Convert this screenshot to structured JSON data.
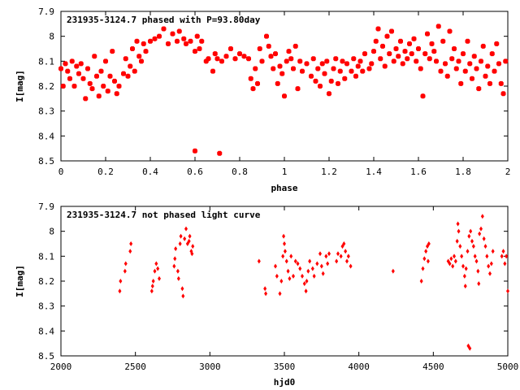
{
  "chart_data": [
    {
      "type": "scatter",
      "title": "231935-3124.7 phased with P=93.80day",
      "xlabel": "phase",
      "ylabel": "I[mag]",
      "xlim": [
        0,
        2
      ],
      "ylim": [
        8.5,
        7.9
      ],
      "y_inverted": true,
      "grid": false,
      "marker_color": "#ff0000",
      "marker": "filled-square-rotated",
      "xticks": [
        {
          "v": 0,
          "label": "0"
        },
        {
          "v": 0.2,
          "label": "0.2"
        },
        {
          "v": 0.4,
          "label": "0.4"
        },
        {
          "v": 0.6,
          "label": "0.6"
        },
        {
          "v": 0.8,
          "label": "0.8"
        },
        {
          "v": 1,
          "label": "1"
        },
        {
          "v": 1.2,
          "label": "1.2"
        },
        {
          "v": 1.4,
          "label": "1.4"
        },
        {
          "v": 1.6,
          "label": "1.6"
        },
        {
          "v": 1.8,
          "label": "1.8"
        },
        {
          "v": 2,
          "label": "2"
        }
      ],
      "yticks": [
        {
          "v": 7.9,
          "label": "7.9"
        },
        {
          "v": 8.0,
          "label": "8"
        },
        {
          "v": 8.1,
          "label": "8.1"
        },
        {
          "v": 8.2,
          "label": "8.2"
        },
        {
          "v": 8.3,
          "label": "8.3"
        },
        {
          "v": 8.4,
          "label": "8.4"
        },
        {
          "v": 8.5,
          "label": "8.5"
        }
      ],
      "points": [
        [
          0.0,
          8.13
        ],
        [
          0.01,
          8.2
        ],
        [
          0.02,
          8.11
        ],
        [
          0.03,
          8.14
        ],
        [
          0.04,
          8.17
        ],
        [
          0.05,
          8.1
        ],
        [
          0.06,
          8.2
        ],
        [
          0.07,
          8.12
        ],
        [
          0.08,
          8.15
        ],
        [
          0.09,
          8.11
        ],
        [
          0.1,
          8.17
        ],
        [
          0.11,
          8.25
        ],
        [
          0.12,
          8.13
        ],
        [
          0.13,
          8.19
        ],
        [
          0.14,
          8.21
        ],
        [
          0.15,
          8.08
        ],
        [
          0.16,
          8.16
        ],
        [
          0.17,
          8.24
        ],
        [
          0.18,
          8.14
        ],
        [
          0.19,
          8.2
        ],
        [
          0.2,
          8.1
        ],
        [
          0.21,
          8.22
        ],
        [
          0.22,
          8.16
        ],
        [
          0.23,
          8.06
        ],
        [
          0.24,
          8.18
        ],
        [
          0.25,
          8.23
        ],
        [
          0.26,
          8.2
        ],
        [
          0.28,
          8.15
        ],
        [
          0.29,
          8.09
        ],
        [
          0.3,
          8.16
        ],
        [
          0.31,
          8.12
        ],
        [
          0.32,
          8.05
        ],
        [
          0.33,
          8.14
        ],
        [
          0.34,
          8.02
        ],
        [
          0.35,
          8.08
        ],
        [
          0.36,
          8.1
        ],
        [
          0.37,
          8.03
        ],
        [
          0.38,
          8.06
        ],
        [
          0.4,
          8.02
        ],
        [
          0.42,
          8.01
        ],
        [
          0.44,
          8.0
        ],
        [
          0.46,
          7.97
        ],
        [
          0.48,
          8.03
        ],
        [
          0.5,
          7.99
        ],
        [
          0.52,
          8.02
        ],
        [
          0.53,
          7.98
        ],
        [
          0.55,
          8.01
        ],
        [
          0.56,
          8.03
        ],
        [
          0.58,
          8.02
        ],
        [
          0.6,
          8.06
        ],
        [
          0.61,
          8.0
        ],
        [
          0.62,
          8.05
        ],
        [
          0.63,
          8.02
        ],
        [
          0.65,
          8.1
        ],
        [
          0.66,
          8.09
        ],
        [
          0.68,
          8.14
        ],
        [
          0.69,
          8.07
        ],
        [
          0.7,
          8.09
        ],
        [
          0.72,
          8.1
        ],
        [
          0.74,
          8.08
        ],
        [
          0.76,
          8.05
        ],
        [
          0.78,
          8.09
        ],
        [
          0.8,
          8.07
        ],
        [
          0.82,
          8.08
        ],
        [
          0.84,
          8.09
        ],
        [
          0.85,
          8.17
        ],
        [
          0.86,
          8.21
        ],
        [
          0.87,
          8.13
        ],
        [
          0.88,
          8.19
        ],
        [
          0.89,
          8.05
        ],
        [
          0.9,
          8.1
        ],
        [
          0.92,
          8.0
        ],
        [
          0.93,
          8.04
        ],
        [
          0.94,
          8.08
        ],
        [
          0.95,
          8.13
        ],
        [
          0.96,
          8.07
        ],
        [
          0.97,
          8.19
        ],
        [
          0.98,
          8.12
        ],
        [
          0.99,
          8.15
        ],
        [
          1.0,
          8.24
        ],
        [
          1.01,
          8.1
        ],
        [
          1.02,
          8.06
        ],
        [
          1.03,
          8.09
        ],
        [
          1.04,
          8.13
        ],
        [
          1.05,
          8.04
        ],
        [
          1.06,
          8.21
        ],
        [
          1.07,
          8.1
        ],
        [
          1.08,
          8.14
        ],
        [
          1.1,
          8.11
        ],
        [
          1.12,
          8.16
        ],
        [
          1.13,
          8.09
        ],
        [
          1.14,
          8.18
        ],
        [
          1.15,
          8.13
        ],
        [
          1.16,
          8.2
        ],
        [
          1.17,
          8.11
        ],
        [
          1.18,
          8.15
        ],
        [
          1.19,
          8.1
        ],
        [
          1.2,
          8.23
        ],
        [
          1.21,
          8.18
        ],
        [
          1.22,
          8.13
        ],
        [
          1.23,
          8.09
        ],
        [
          1.24,
          8.19
        ],
        [
          1.25,
          8.14
        ],
        [
          1.26,
          8.1
        ],
        [
          1.27,
          8.17
        ],
        [
          1.28,
          8.11
        ],
        [
          1.3,
          8.14
        ],
        [
          1.31,
          8.09
        ],
        [
          1.32,
          8.16
        ],
        [
          1.33,
          8.12
        ],
        [
          1.34,
          8.1
        ],
        [
          1.35,
          8.14
        ],
        [
          1.36,
          8.07
        ],
        [
          1.38,
          8.13
        ],
        [
          1.39,
          8.11
        ],
        [
          1.4,
          8.06
        ],
        [
          1.41,
          8.02
        ],
        [
          1.42,
          7.97
        ],
        [
          1.43,
          8.09
        ],
        [
          1.44,
          8.04
        ],
        [
          1.45,
          8.12
        ],
        [
          1.46,
          8.0
        ],
        [
          1.47,
          8.07
        ],
        [
          1.48,
          7.98
        ],
        [
          1.49,
          8.1
        ],
        [
          1.5,
          8.05
        ],
        [
          1.51,
          8.08
        ],
        [
          1.52,
          8.02
        ],
        [
          1.53,
          8.11
        ],
        [
          1.54,
          8.06
        ],
        [
          1.55,
          8.09
        ],
        [
          1.56,
          8.03
        ],
        [
          1.57,
          8.07
        ],
        [
          1.58,
          8.01
        ],
        [
          1.59,
          8.1
        ],
        [
          1.6,
          8.05
        ],
        [
          1.61,
          8.13
        ],
        [
          1.62,
          8.24
        ],
        [
          1.63,
          8.07
        ],
        [
          1.64,
          7.99
        ],
        [
          1.65,
          8.09
        ],
        [
          1.66,
          8.03
        ],
        [
          1.67,
          8.06
        ],
        [
          1.68,
          8.1
        ],
        [
          1.69,
          7.96
        ],
        [
          1.7,
          8.14
        ],
        [
          1.71,
          8.02
        ],
        [
          1.72,
          8.11
        ],
        [
          1.73,
          8.16
        ],
        [
          1.74,
          7.98
        ],
        [
          1.75,
          8.09
        ],
        [
          1.76,
          8.05
        ],
        [
          1.77,
          8.13
        ],
        [
          1.78,
          8.1
        ],
        [
          1.79,
          8.19
        ],
        [
          1.8,
          8.07
        ],
        [
          1.81,
          8.14
        ],
        [
          1.82,
          8.02
        ],
        [
          1.83,
          8.11
        ],
        [
          1.84,
          8.17
        ],
        [
          1.85,
          8.08
        ],
        [
          1.86,
          8.13
        ],
        [
          1.87,
          8.21
        ],
        [
          1.88,
          8.1
        ],
        [
          1.89,
          8.04
        ],
        [
          1.9,
          8.16
        ],
        [
          1.91,
          8.12
        ],
        [
          1.92,
          8.19
        ],
        [
          1.93,
          8.07
        ],
        [
          1.94,
          8.14
        ],
        [
          1.95,
          8.03
        ],
        [
          1.96,
          8.11
        ],
        [
          1.97,
          8.19
        ],
        [
          1.98,
          8.23
        ],
        [
          1.99,
          8.1
        ],
        [
          0.6,
          8.46
        ],
        [
          0.71,
          8.47
        ]
      ]
    },
    {
      "type": "scatter",
      "title": "231935-3124.7 not phased light curve",
      "xlabel": "hjd0",
      "ylabel": "I[mag]",
      "xlim": [
        2000,
        5000
      ],
      "ylim": [
        8.5,
        7.9
      ],
      "y_inverted": true,
      "grid": false,
      "marker_color": "#ff0000",
      "marker": "small-diamond",
      "xticks": [
        {
          "v": 2000,
          "label": "2000"
        },
        {
          "v": 2500,
          "label": "2500"
        },
        {
          "v": 3000,
          "label": "3000"
        },
        {
          "v": 3500,
          "label": "3500"
        },
        {
          "v": 4000,
          "label": "4000"
        },
        {
          "v": 4500,
          "label": "4500"
        },
        {
          "v": 5000,
          "label": "5000"
        }
      ],
      "yticks": [
        {
          "v": 7.9,
          "label": "7.9"
        },
        {
          "v": 8.0,
          "label": "8"
        },
        {
          "v": 8.1,
          "label": "8.1"
        },
        {
          "v": 8.2,
          "label": "8.2"
        },
        {
          "v": 8.3,
          "label": "8.3"
        },
        {
          "v": 8.4,
          "label": "8.4"
        },
        {
          "v": 8.5,
          "label": "8.5"
        }
      ],
      "points": [
        [
          2395,
          8.24
        ],
        [
          2400,
          8.2
        ],
        [
          2430,
          8.16
        ],
        [
          2435,
          8.13
        ],
        [
          2465,
          8.08
        ],
        [
          2470,
          8.05
        ],
        [
          2610,
          8.24
        ],
        [
          2615,
          8.22
        ],
        [
          2620,
          8.2
        ],
        [
          2630,
          8.16
        ],
        [
          2640,
          8.13
        ],
        [
          2650,
          8.15
        ],
        [
          2660,
          8.19
        ],
        [
          2760,
          8.14
        ],
        [
          2765,
          8.11
        ],
        [
          2770,
          8.07
        ],
        [
          2785,
          8.16
        ],
        [
          2790,
          8.19
        ],
        [
          2800,
          8.05
        ],
        [
          2805,
          8.02
        ],
        [
          2815,
          8.23
        ],
        [
          2820,
          8.26
        ],
        [
          2830,
          8.03
        ],
        [
          2840,
          7.99
        ],
        [
          2850,
          8.05
        ],
        [
          2860,
          8.04
        ],
        [
          2865,
          8.02
        ],
        [
          2875,
          8.08
        ],
        [
          2880,
          8.09
        ],
        [
          2885,
          8.06
        ],
        [
          3330,
          8.12
        ],
        [
          3370,
          8.23
        ],
        [
          3375,
          8.25
        ],
        [
          3440,
          8.14
        ],
        [
          3450,
          8.18
        ],
        [
          3470,
          8.25
        ],
        [
          3480,
          8.2
        ],
        [
          3490,
          8.1
        ],
        [
          3495,
          8.02
        ],
        [
          3500,
          8.05
        ],
        [
          3505,
          8.08
        ],
        [
          3515,
          8.12
        ],
        [
          3525,
          8.16
        ],
        [
          3535,
          8.19
        ],
        [
          3545,
          8.1
        ],
        [
          3560,
          8.18
        ],
        [
          3575,
          8.12
        ],
        [
          3590,
          8.13
        ],
        [
          3605,
          8.15
        ],
        [
          3620,
          8.18
        ],
        [
          3635,
          8.21
        ],
        [
          3645,
          8.24
        ],
        [
          3650,
          8.2
        ],
        [
          3660,
          8.16
        ],
        [
          3670,
          8.12
        ],
        [
          3690,
          8.15
        ],
        [
          3700,
          8.18
        ],
        [
          3720,
          8.13
        ],
        [
          3740,
          8.09
        ],
        [
          3750,
          8.14
        ],
        [
          3760,
          8.17
        ],
        [
          3780,
          8.1
        ],
        [
          3790,
          8.13
        ],
        [
          3800,
          8.09
        ],
        [
          3850,
          8.12
        ],
        [
          3860,
          8.09
        ],
        [
          3880,
          8.1
        ],
        [
          3890,
          8.06
        ],
        [
          3900,
          8.05
        ],
        [
          3910,
          8.08
        ],
        [
          3920,
          8.12
        ],
        [
          3930,
          8.1
        ],
        [
          3945,
          8.14
        ],
        [
          4230,
          8.16
        ],
        [
          4420,
          8.2
        ],
        [
          4430,
          8.15
        ],
        [
          4440,
          8.11
        ],
        [
          4450,
          8.08
        ],
        [
          4460,
          8.06
        ],
        [
          4465,
          8.12
        ],
        [
          4470,
          8.05
        ],
        [
          4600,
          8.12
        ],
        [
          4610,
          8.13
        ],
        [
          4620,
          8.11
        ],
        [
          4630,
          8.14
        ],
        [
          4640,
          8.1
        ],
        [
          4650,
          8.12
        ],
        [
          4660,
          8.04
        ],
        [
          4665,
          7.97
        ],
        [
          4670,
          8.0
        ],
        [
          4680,
          8.06
        ],
        [
          4690,
          8.1
        ],
        [
          4700,
          8.14
        ],
        [
          4710,
          8.18
        ],
        [
          4715,
          8.22
        ],
        [
          4720,
          8.15
        ],
        [
          4730,
          8.08
        ],
        [
          4740,
          8.02
        ],
        [
          4750,
          8.0
        ],
        [
          4760,
          8.04
        ],
        [
          4770,
          8.06
        ],
        [
          4780,
          8.1
        ],
        [
          4790,
          8.12
        ],
        [
          4800,
          8.16
        ],
        [
          4805,
          8.21
        ],
        [
          4810,
          8.01
        ],
        [
          4820,
          7.99
        ],
        [
          4830,
          7.94
        ],
        [
          4840,
          8.03
        ],
        [
          4850,
          8.06
        ],
        [
          4860,
          8.1
        ],
        [
          4870,
          8.14
        ],
        [
          4880,
          8.17
        ],
        [
          4890,
          8.13
        ],
        [
          4900,
          8.08
        ],
        [
          4960,
          8.1
        ],
        [
          4970,
          8.08
        ],
        [
          4980,
          8.13
        ],
        [
          4990,
          8.1
        ],
        [
          5000,
          8.24
        ],
        [
          4735,
          8.46
        ],
        [
          4745,
          8.47
        ]
      ]
    }
  ]
}
